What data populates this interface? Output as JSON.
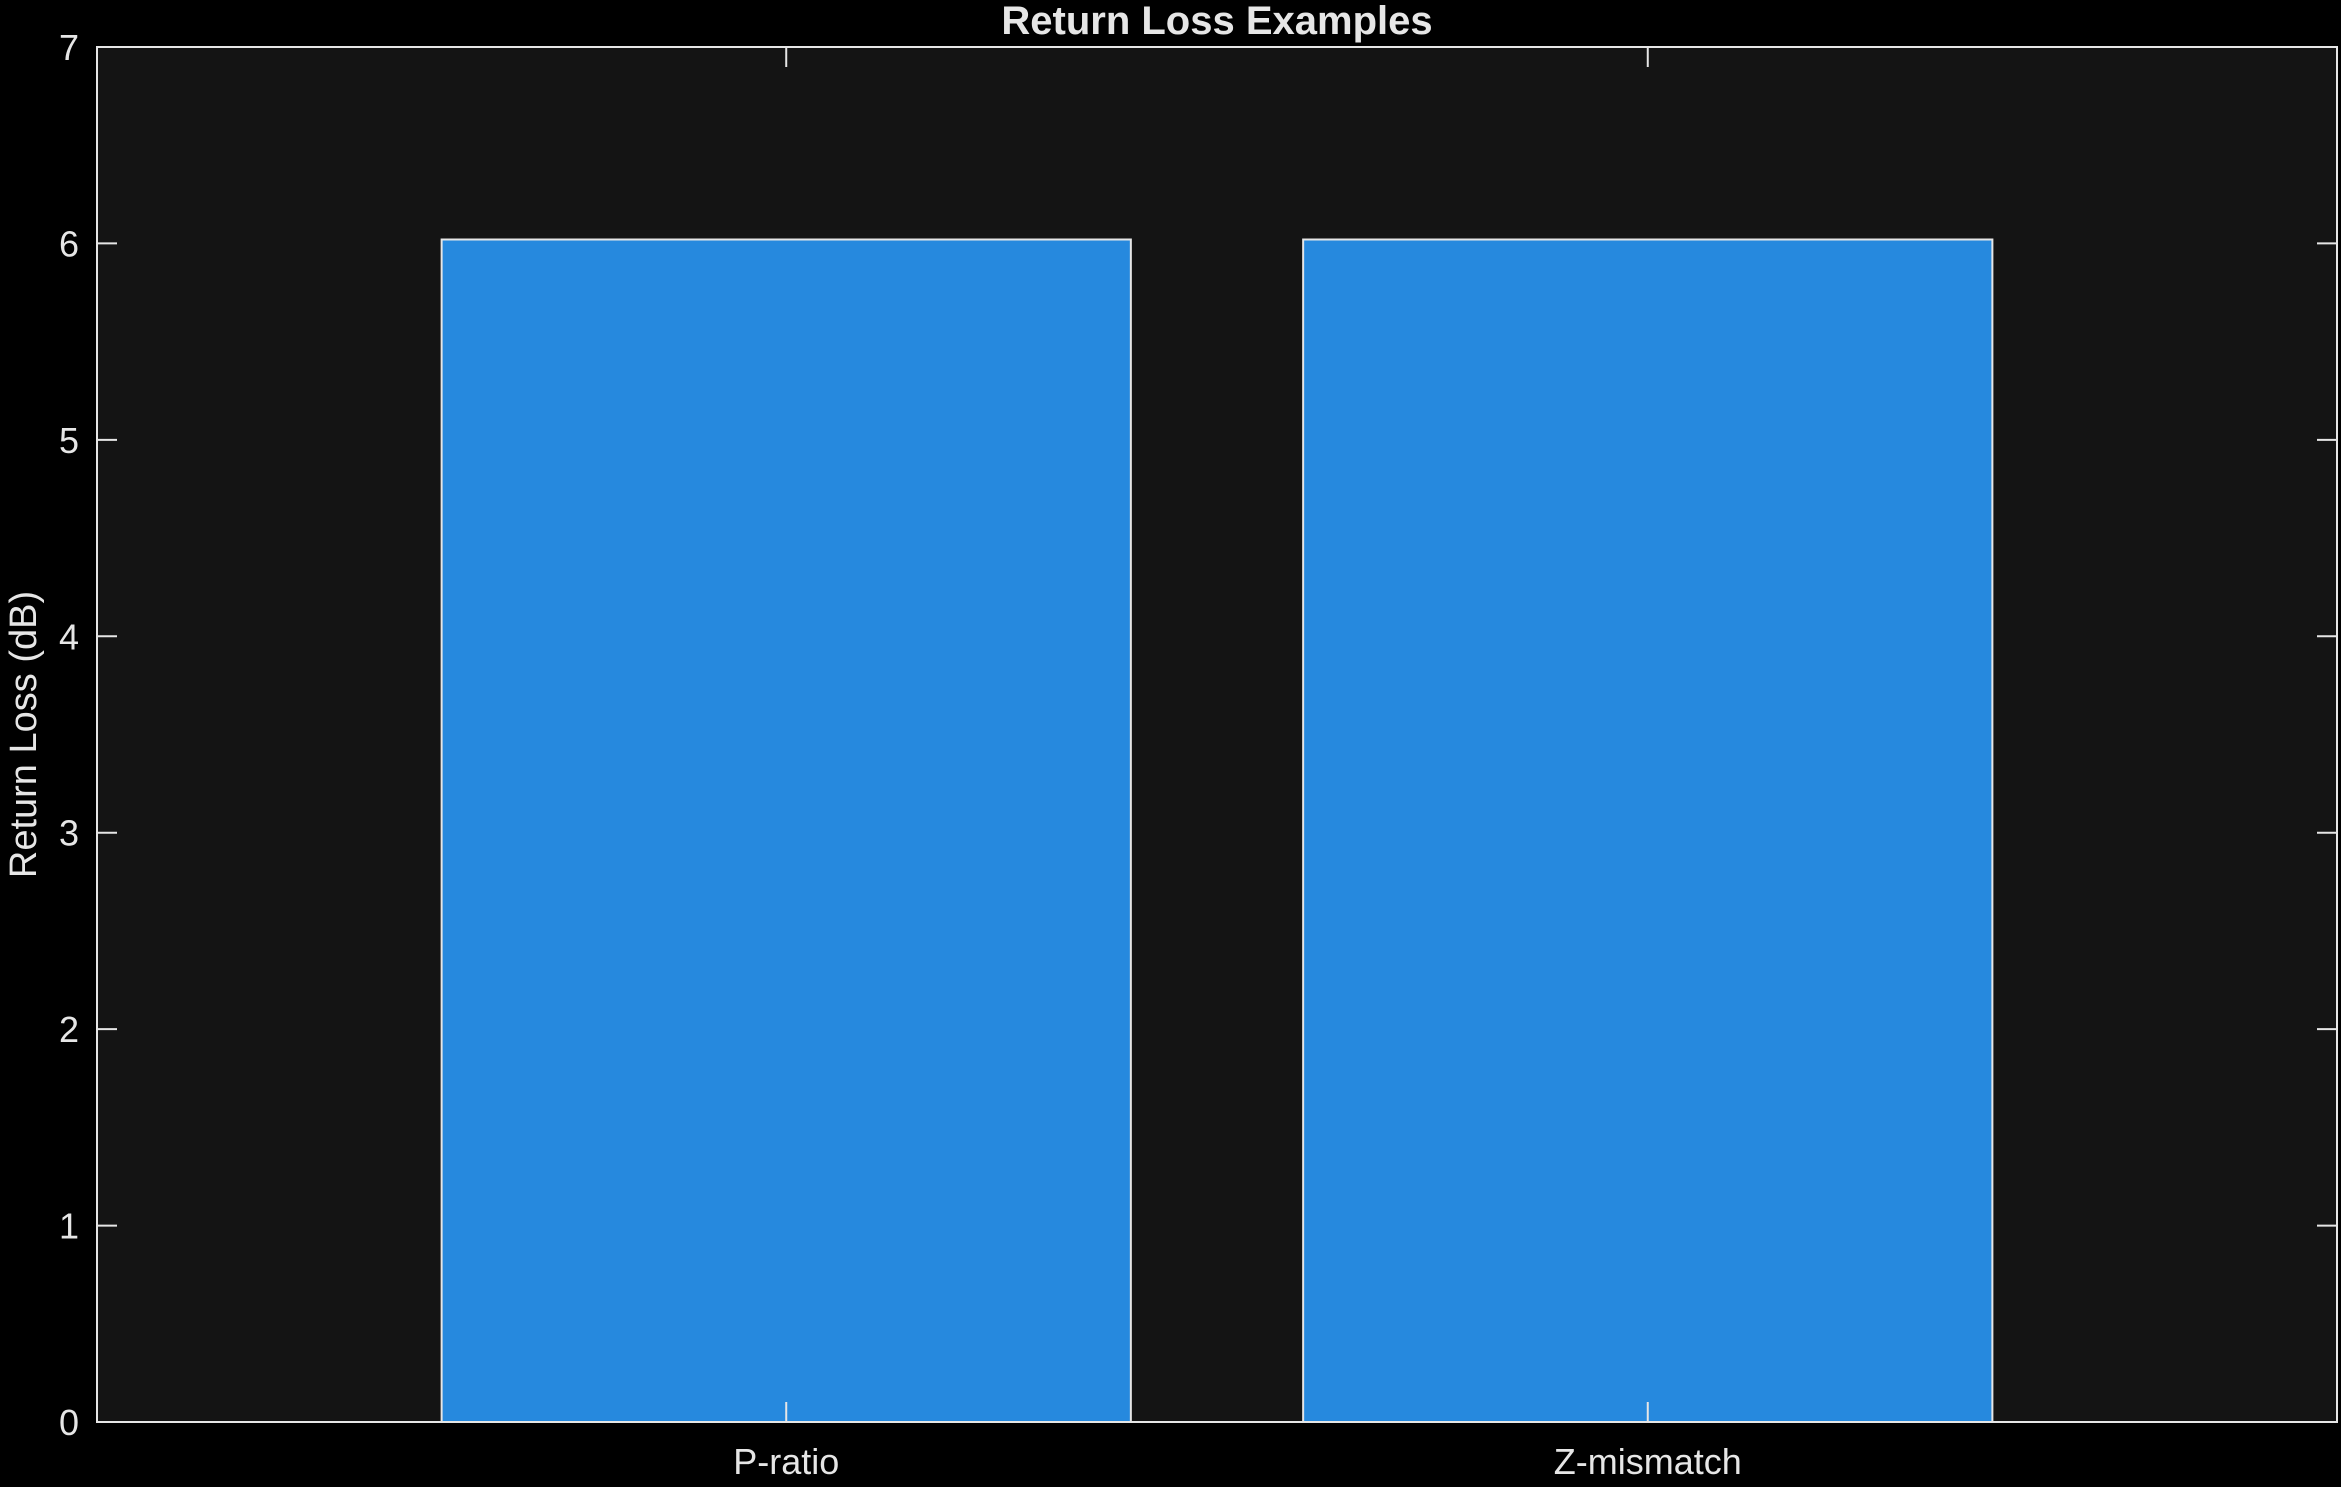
{
  "chart_data": {
    "type": "bar",
    "title": "Return Loss Examples",
    "xlabel": "",
    "ylabel": "Return Loss (dB)",
    "categories": [
      "P-ratio",
      "Z-mismatch"
    ],
    "values": [
      6.02,
      6.02
    ],
    "ylim": [
      0,
      7
    ],
    "yticks": [
      "0",
      "1",
      "2",
      "3",
      "4",
      "5",
      "6",
      "7"
    ],
    "grid": false,
    "colors": {
      "figure_background": "#000000",
      "axes_background": "#141414",
      "bar_fill": "#2689DE",
      "bar_edge": "#E6E6E6",
      "axis_line": "#E6E6E6",
      "text": "#E6E6E6"
    }
  }
}
